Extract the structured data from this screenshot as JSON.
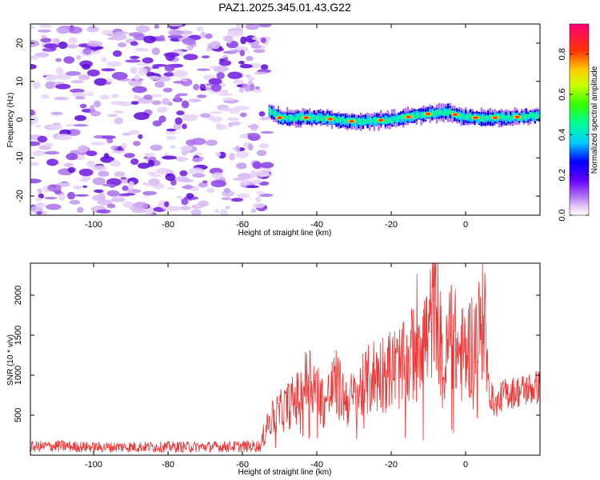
{
  "title": "PAZ1.2025.345.01.43.G22",
  "chart_data": [
    {
      "type": "heatmap",
      "title": "PAZ1.2025.345.01.43.G22",
      "xlabel": "Height of straight line (km)",
      "ylabel": "Frequency (Hz)",
      "xlim": [
        -117,
        20
      ],
      "ylim": [
        -25,
        25
      ],
      "xticks": [
        -100,
        -80,
        -60,
        -40,
        -20,
        0
      ],
      "yticks": [
        -20,
        -10,
        0,
        10,
        20
      ],
      "noise_region_x": [
        -117,
        -53
      ],
      "ridge_region_x": [
        -53,
        20
      ],
      "ridge_center_hz": [
        {
          "x": -55,
          "f": 3.5
        },
        {
          "x": -50,
          "f": 0.5
        },
        {
          "x": -40,
          "f": 0.5
        },
        {
          "x": -30,
          "f": -0.5
        },
        {
          "x": -20,
          "f": 0.0
        },
        {
          "x": -10,
          "f": 1.5
        },
        {
          "x": -5,
          "f": 2.0
        },
        {
          "x": 0,
          "f": 0.5
        },
        {
          "x": 10,
          "f": 0.5
        },
        {
          "x": 20,
          "f": 1.0
        }
      ],
      "colorbar": {
        "label": "Normalized spectral amplitude",
        "range": [
          0,
          0.95
        ],
        "ticks": [
          0.0,
          0.2,
          0.4,
          0.6,
          0.8
        ],
        "tick_labels": [
          "0.0",
          "0.2",
          "0.4",
          "0.6",
          "0.8"
        ]
      }
    },
    {
      "type": "line",
      "xlabel": "Height of straight line (km)",
      "ylabel": "SNR (10 * v/v)",
      "xlim": [
        -117,
        20
      ],
      "ylim": [
        0,
        2400
      ],
      "xticks": [
        -100,
        -80,
        -60,
        -40,
        -20,
        0
      ],
      "yticks": [
        500,
        1000,
        1500,
        2000
      ],
      "color": "#ee3333",
      "series": [
        {
          "name": "SNR",
          "x": [
            -117,
            -110,
            -100,
            -90,
            -80,
            -70,
            -60,
            -55,
            -53,
            -50,
            -45,
            -42,
            -40,
            -38,
            -35,
            -32,
            -30,
            -25,
            -20,
            -15,
            -13,
            -10,
            -8,
            -6,
            -4,
            -2,
            0,
            2,
            4,
            5,
            6,
            8,
            10,
            15,
            20
          ],
          "y": [
            100,
            110,
            95,
            100,
            100,
            100,
            105,
            110,
            450,
            600,
            800,
            1100,
            900,
            700,
            1000,
            750,
            800,
            1100,
            1200,
            1250,
            1750,
            1600,
            2400,
            1000,
            1800,
            1400,
            1400,
            1600,
            1700,
            2200,
            900,
            650,
            800,
            850,
            900
          ]
        }
      ]
    }
  ]
}
